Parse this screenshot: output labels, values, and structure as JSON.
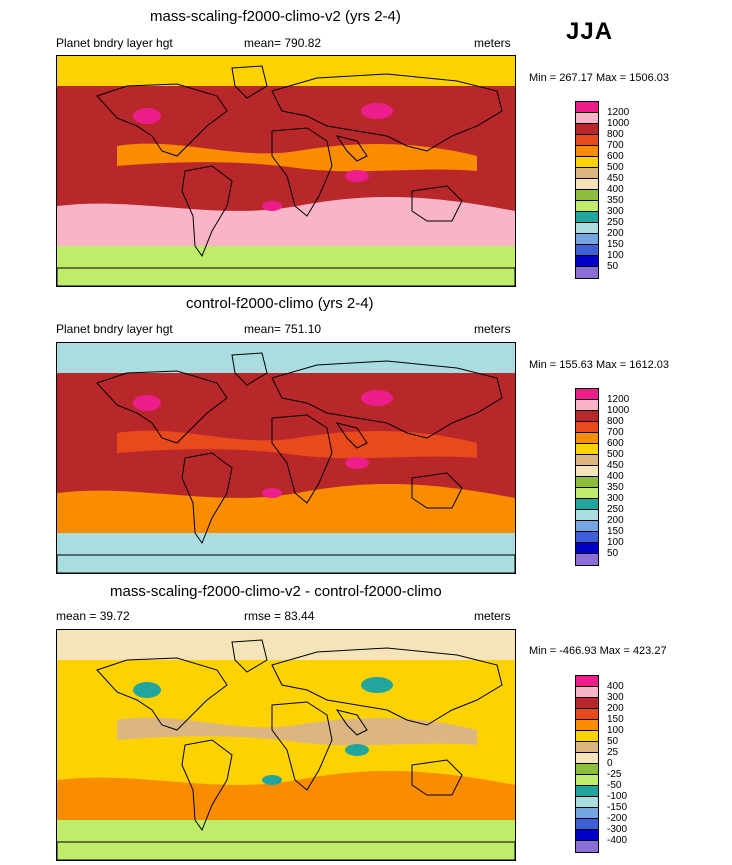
{
  "season": "JJA",
  "panels": [
    {
      "id": "test",
      "title": "mass-scaling-f2000-climo-v2 (yrs 2-4)",
      "left_label": "Planet bndry layer hgt",
      "center_label": "mean= 790.82",
      "right_label": "meters",
      "minmax": "Min = 267.17 Max = 1506.03",
      "colorbar": {
        "levels": [
          "1200",
          "1000",
          "800",
          "700",
          "600",
          "500",
          "450",
          "400",
          "350",
          "300",
          "250",
          "200",
          "150",
          "100",
          "50"
        ],
        "colors": [
          "#ee1d8c",
          "#f9b4c8",
          "#b8282a",
          "#e84a1c",
          "#fa8c00",
          "#fcd200",
          "#dcb682",
          "#f5e3b9",
          "#8cbd3c",
          "#c0ec6c",
          "#22a59c",
          "#a9dde0",
          "#74a6e2",
          "#3f5fd9",
          "#0000c8",
          "#8c6ed8"
        ]
      },
      "palette": {
        "base": "#b8282a",
        "band": "#f9b4c8",
        "north": "#fcd200",
        "south": "#c0ec6c",
        "ocean_tint": "#fa8c00",
        "accent": "#ee1d8c"
      }
    },
    {
      "id": "control",
      "title": "control-f2000-climo (yrs 2-4)",
      "left_label": "Planet bndry layer hgt",
      "center_label": "mean= 751.10",
      "right_label": "meters",
      "minmax": "Min = 155.63 Max = 1612.03",
      "colorbar": {
        "levels": [
          "1200",
          "1000",
          "800",
          "700",
          "600",
          "500",
          "450",
          "400",
          "350",
          "300",
          "250",
          "200",
          "150",
          "100",
          "50"
        ],
        "colors": [
          "#ee1d8c",
          "#f9b4c8",
          "#b8282a",
          "#e84a1c",
          "#fa8c00",
          "#fcd200",
          "#dcb682",
          "#f5e3b9",
          "#8cbd3c",
          "#c0ec6c",
          "#22a59c",
          "#a9dde0",
          "#74a6e2",
          "#3f5fd9",
          "#0000c8",
          "#8c6ed8"
        ]
      },
      "palette": {
        "base": "#b8282a",
        "band": "#fa8c00",
        "north": "#a9dde0",
        "south": "#a9dde0",
        "ocean_tint": "#e84a1c",
        "accent": "#ee1d8c"
      }
    },
    {
      "id": "diff",
      "title": "mass-scaling-f2000-climo-v2 - control-f2000-climo",
      "left_label": "mean =  39.72",
      "center_label": "rmse =  83.44",
      "right_label": "meters",
      "minmax": "Min = -466.93 Max = 423.27",
      "colorbar": {
        "levels": [
          "400",
          "300",
          "200",
          "150",
          "100",
          "50",
          "25",
          "0",
          "-25",
          "-50",
          "-100",
          "-150",
          "-200",
          "-300",
          "-400"
        ],
        "colors": [
          "#ee1d8c",
          "#f9b4c8",
          "#b8282a",
          "#e84a1c",
          "#fa8c00",
          "#fcd200",
          "#dcb682",
          "#f5e3b9",
          "#8cbd3c",
          "#c0ec6c",
          "#22a59c",
          "#a9dde0",
          "#74a6e2",
          "#3f5fd9",
          "#0000c8",
          "#8c6ed8"
        ]
      },
      "palette": {
        "base": "#fcd200",
        "band": "#fa8c00",
        "north": "#f5e3b9",
        "south": "#c0ec6c",
        "ocean_tint": "#dcb682",
        "accent": "#22a59c"
      }
    }
  ]
}
